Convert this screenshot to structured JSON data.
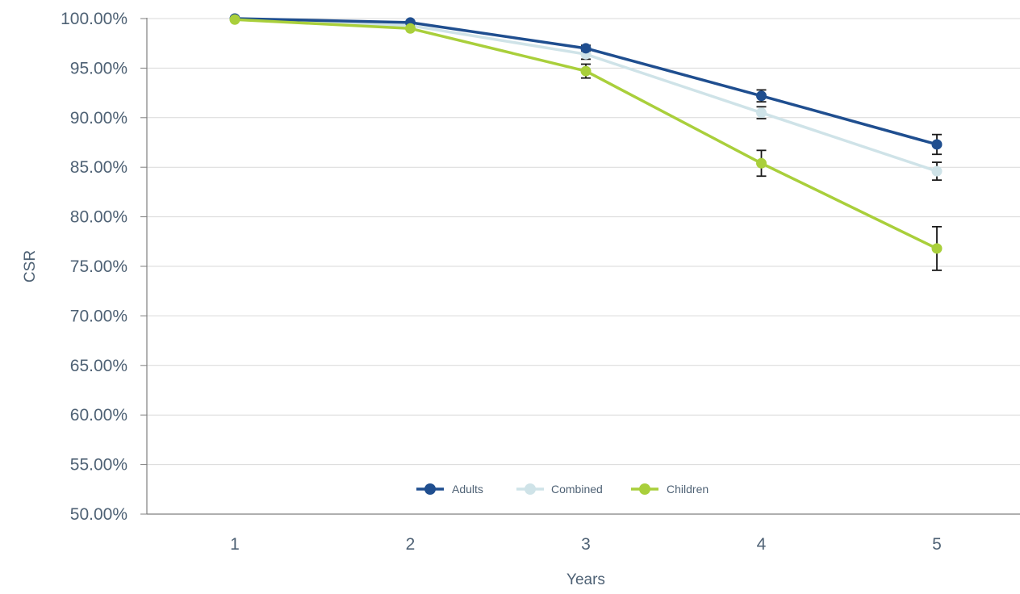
{
  "chart_data": {
    "type": "line",
    "title": "",
    "xlabel": "Years",
    "ylabel": "CSR",
    "categories": [
      "1",
      "2",
      "3",
      "4",
      "5"
    ],
    "ylim": [
      50,
      100
    ],
    "ytick_values": [
      50,
      55,
      60,
      65,
      70,
      75,
      80,
      85,
      90,
      95,
      100
    ],
    "ytick_labels": [
      "50.00%",
      "55.00%",
      "60.00%",
      "65.00%",
      "70.00%",
      "75.00%",
      "80.00%",
      "85.00%",
      "90.00%",
      "95.00%",
      "100.00%"
    ],
    "grid": true,
    "legend_position": "bottom-center",
    "series": [
      {
        "name": "Adults",
        "color": "#1f4e8f",
        "values": [
          100.0,
          99.6,
          97.0,
          92.2,
          87.3
        ],
        "error": [
          0,
          0,
          0.3,
          0.6,
          1.0
        ]
      },
      {
        "name": "Combined",
        "color": "#cfe3e8",
        "values": [
          100.0,
          99.3,
          96.4,
          90.5,
          84.6
        ],
        "error": [
          0,
          0,
          0.5,
          0.6,
          0.9
        ]
      },
      {
        "name": "Children",
        "color": "#a9cf3b",
        "values": [
          99.9,
          99.0,
          94.7,
          85.4,
          76.8
        ],
        "error": [
          0,
          0,
          0.7,
          1.3,
          2.2
        ]
      }
    ]
  }
}
